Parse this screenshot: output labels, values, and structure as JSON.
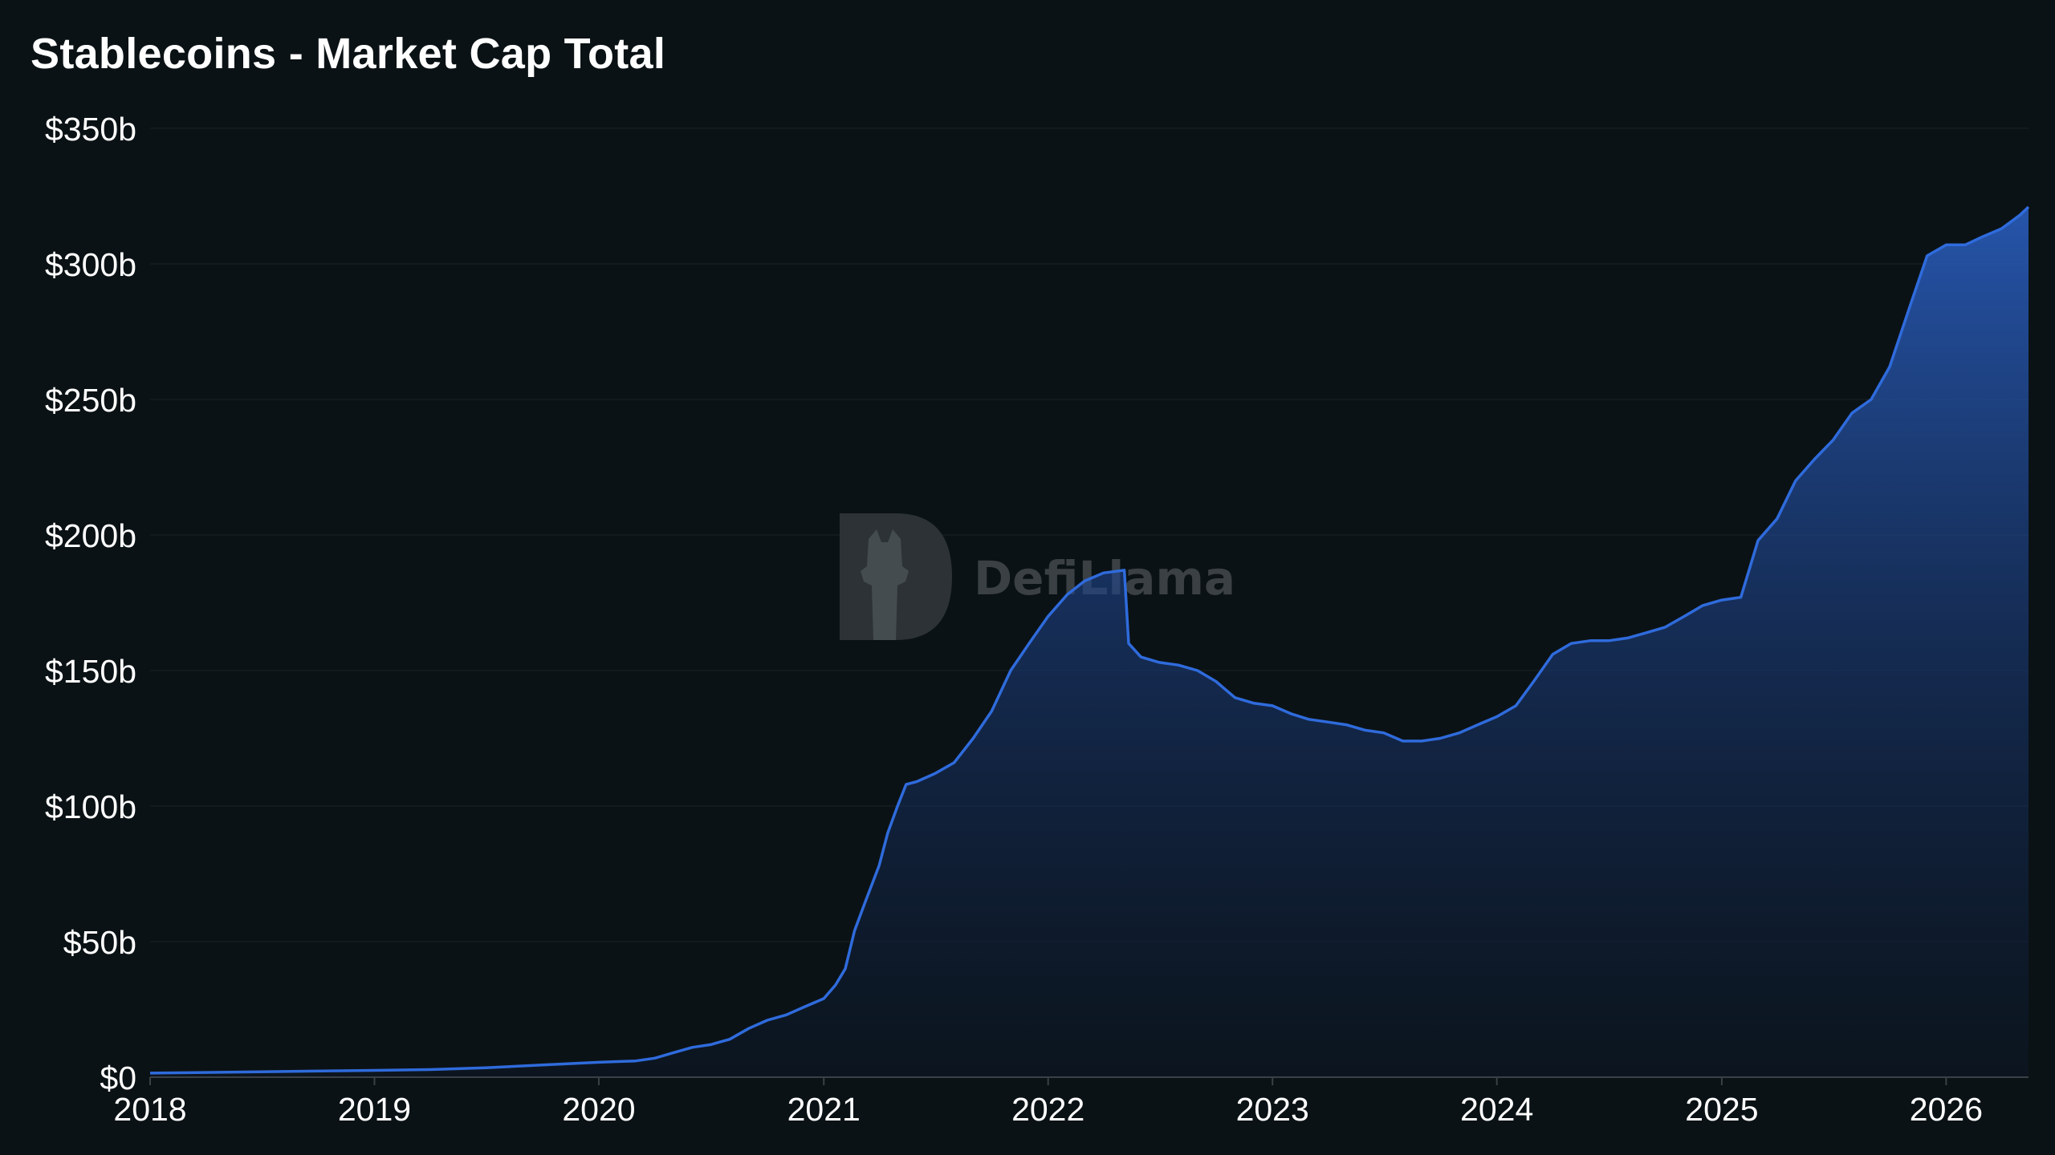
{
  "chart_data": {
    "type": "area",
    "title": "Stablecoins - Market Cap Total",
    "xlabel": "",
    "ylabel": "",
    "ylim": [
      0,
      350
    ],
    "xlim": [
      "2018-01-01",
      "2026-05-15"
    ],
    "y_ticks": [
      "$0",
      "$50b",
      "$100b",
      "$150b",
      "$200b",
      "$250b",
      "$300b",
      "$350b"
    ],
    "x_ticks": [
      "2018",
      "2019",
      "2020",
      "2021",
      "2022",
      "2023",
      "2024",
      "2025",
      "2026"
    ],
    "grid": true,
    "legend": "none",
    "watermark": "DefiLlama",
    "line_color": "#2f6bdc",
    "series": [
      {
        "name": "",
        "x": [
          "2018-01-01",
          "2018-07-01",
          "2019-01-01",
          "2019-04-01",
          "2019-07-01",
          "2019-10-01",
          "2020-01-01",
          "2020-03-01",
          "2020-04-01",
          "2020-05-01",
          "2020-06-01",
          "2020-07-01",
          "2020-08-01",
          "2020-09-01",
          "2020-10-01",
          "2020-11-01",
          "2020-12-01",
          "2021-01-01",
          "2021-01-20",
          "2021-02-05",
          "2021-02-20",
          "2021-03-10",
          "2021-04-01",
          "2021-04-15",
          "2021-05-01",
          "2021-05-15",
          "2021-06-01",
          "2021-07-01",
          "2021-08-01",
          "2021-09-01",
          "2021-10-01",
          "2021-11-01",
          "2021-12-01",
          "2022-01-01",
          "2022-02-01",
          "2022-03-01",
          "2022-04-01",
          "2022-05-05",
          "2022-05-12",
          "2022-06-01",
          "2022-07-01",
          "2022-08-01",
          "2022-09-01",
          "2022-10-01",
          "2022-11-01",
          "2022-12-01",
          "2023-01-01",
          "2023-02-01",
          "2023-03-01",
          "2023-04-01",
          "2023-05-01",
          "2023-06-01",
          "2023-07-01",
          "2023-08-01",
          "2023-09-01",
          "2023-10-01",
          "2023-11-01",
          "2023-12-01",
          "2024-01-01",
          "2024-02-01",
          "2024-03-01",
          "2024-04-01",
          "2024-05-01",
          "2024-06-01",
          "2024-07-01",
          "2024-08-01",
          "2024-09-01",
          "2024-10-01",
          "2024-11-01",
          "2024-12-01",
          "2025-01-01",
          "2025-02-01",
          "2025-03-01",
          "2025-04-01",
          "2025-05-01",
          "2025-06-01",
          "2025-07-01",
          "2025-08-01",
          "2025-09-01",
          "2025-10-01",
          "2025-11-01",
          "2025-12-01",
          "2026-01-01",
          "2026-02-01",
          "2026-03-01",
          "2026-04-01",
          "2026-05-01",
          "2026-05-15"
        ],
        "values": [
          1.5,
          2,
          2.5,
          2.8,
          3.5,
          4.5,
          5.5,
          6,
          7,
          9,
          11,
          12,
          14,
          18,
          21,
          23,
          26,
          29,
          34,
          40,
          54,
          65,
          78,
          90,
          100,
          108,
          109,
          112,
          116,
          125,
          135,
          150,
          160,
          170,
          178,
          183,
          186,
          187,
          160,
          155,
          153,
          152,
          150,
          146,
          140,
          138,
          137,
          134,
          132,
          131,
          130,
          128,
          127,
          124,
          124,
          125,
          127,
          130,
          133,
          137,
          146,
          156,
          160,
          161,
          161,
          162,
          164,
          166,
          170,
          174,
          176,
          177,
          198,
          206,
          220,
          228,
          235,
          245,
          250,
          262,
          283,
          303,
          307,
          307,
          310,
          313,
          318,
          321
        ]
      }
    ]
  }
}
